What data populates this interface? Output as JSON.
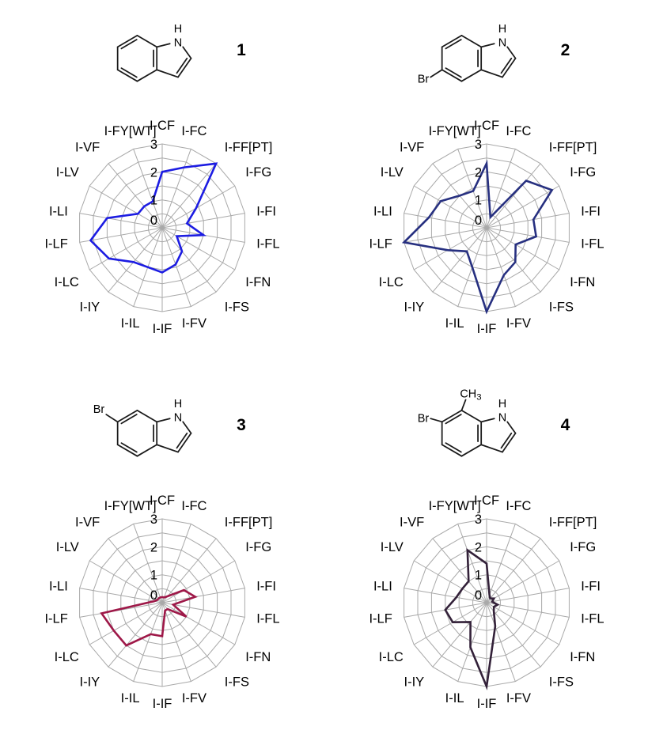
{
  "axes": [
    "I-CF",
    "I-FC",
    "I-FF[PT]",
    "I-FG",
    "I-FI",
    "I-FL",
    "I-FN",
    "I-FS",
    "I-FV",
    "I-IF",
    "I-IL",
    "I-IY",
    "I-LC",
    "I-LF",
    "I-LI",
    "I-LV",
    "I-VF",
    "I-FY[WT]"
  ],
  "radial_ticks": [
    0,
    1,
    2,
    3
  ],
  "grid_color": "#a9a9a9",
  "labels": {
    "N": "N",
    "H": "H",
    "Br": "Br",
    "methyl_main": "CH",
    "methyl_sub": "3"
  },
  "chart_data": [
    {
      "type": "radar",
      "compound_number": "1",
      "structure": "indole",
      "color": "#1c1ce2",
      "rlim": [
        0,
        3
      ],
      "ticks": [
        0,
        1,
        2,
        3
      ],
      "grid": true,
      "categories": [
        "I-CF",
        "I-FC",
        "I-FF[PT]",
        "I-FG",
        "I-FI",
        "I-FL",
        "I-FN",
        "I-FS",
        "I-FV",
        "I-IF",
        "I-IL",
        "I-IY",
        "I-LC",
        "I-LF",
        "I-LI",
        "I-LV",
        "I-VF",
        "I-FY[WT]"
      ],
      "values": [
        2.0,
        2.3,
        3.0,
        1.4,
        0.9,
        1.5,
        0.6,
        1.1,
        1.4,
        1.6,
        1.5,
        1.6,
        2.2,
        2.6,
        2.0,
        1.0,
        1.0,
        1.0
      ]
    },
    {
      "type": "radar",
      "compound_number": "2",
      "structure": "5-bromoindole",
      "color": "#273080",
      "rlim": [
        0,
        3
      ],
      "ticks": [
        0,
        1,
        2,
        3
      ],
      "grid": true,
      "categories": [
        "I-CF",
        "I-FC",
        "I-FF[PT]",
        "I-FG",
        "I-FI",
        "I-FL",
        "I-FN",
        "I-FS",
        "I-FV",
        "I-IF",
        "I-IL",
        "I-IY",
        "I-LC",
        "I-LF",
        "I-LI",
        "I-LV",
        "I-VF",
        "I-FY[WT]"
      ],
      "values": [
        2.3,
        0.4,
        2.2,
        2.7,
        1.7,
        1.8,
        1.2,
        1.6,
        1.8,
        3.0,
        1.5,
        1.1,
        1.6,
        3.0,
        2.1,
        1.9,
        1.5,
        1.4
      ]
    },
    {
      "type": "radar",
      "compound_number": "3",
      "structure": "6-bromoindole",
      "color": "#9e1848",
      "rlim": [
        0,
        3
      ],
      "ticks": [
        0,
        1,
        2,
        3
      ],
      "grid": true,
      "categories": [
        "I-CF",
        "I-FC",
        "I-FF[PT]",
        "I-FG",
        "I-FI",
        "I-FL",
        "I-FN",
        "I-FS",
        "I-FV",
        "I-IF",
        "I-IL",
        "I-IY",
        "I-LC",
        "I-LF",
        "I-LI",
        "I-LV",
        "I-VF",
        "I-FY[WT]"
      ],
      "values": [
        0.2,
        0.2,
        0.3,
        0.9,
        1.2,
        0.4,
        1.0,
        0.3,
        0.3,
        1.2,
        1.2,
        2.0,
        2.0,
        2.2,
        0.3,
        0.2,
        0.2,
        0.2
      ]
    },
    {
      "type": "radar",
      "compound_number": "4",
      "structure": "6-bromo-7-methylindole",
      "color": "#332139",
      "rlim": [
        0,
        3
      ],
      "ticks": [
        0,
        1,
        2,
        3
      ],
      "grid": true,
      "categories": [
        "I-CF",
        "I-FC",
        "I-FF[PT]",
        "I-FG",
        "I-FI",
        "I-FL",
        "I-FN",
        "I-FS",
        "I-FV",
        "I-IF",
        "I-IL",
        "I-IY",
        "I-LC",
        "I-LF",
        "I-LI",
        "I-LV",
        "I-VF",
        "I-FY[WT]"
      ],
      "values": [
        1.4,
        0.3,
        0.2,
        0.3,
        0.2,
        0.4,
        0.3,
        0.4,
        0.9,
        3.0,
        1.7,
        0.9,
        1.4,
        1.5,
        1.1,
        1.0,
        1.0,
        2.0
      ]
    }
  ]
}
